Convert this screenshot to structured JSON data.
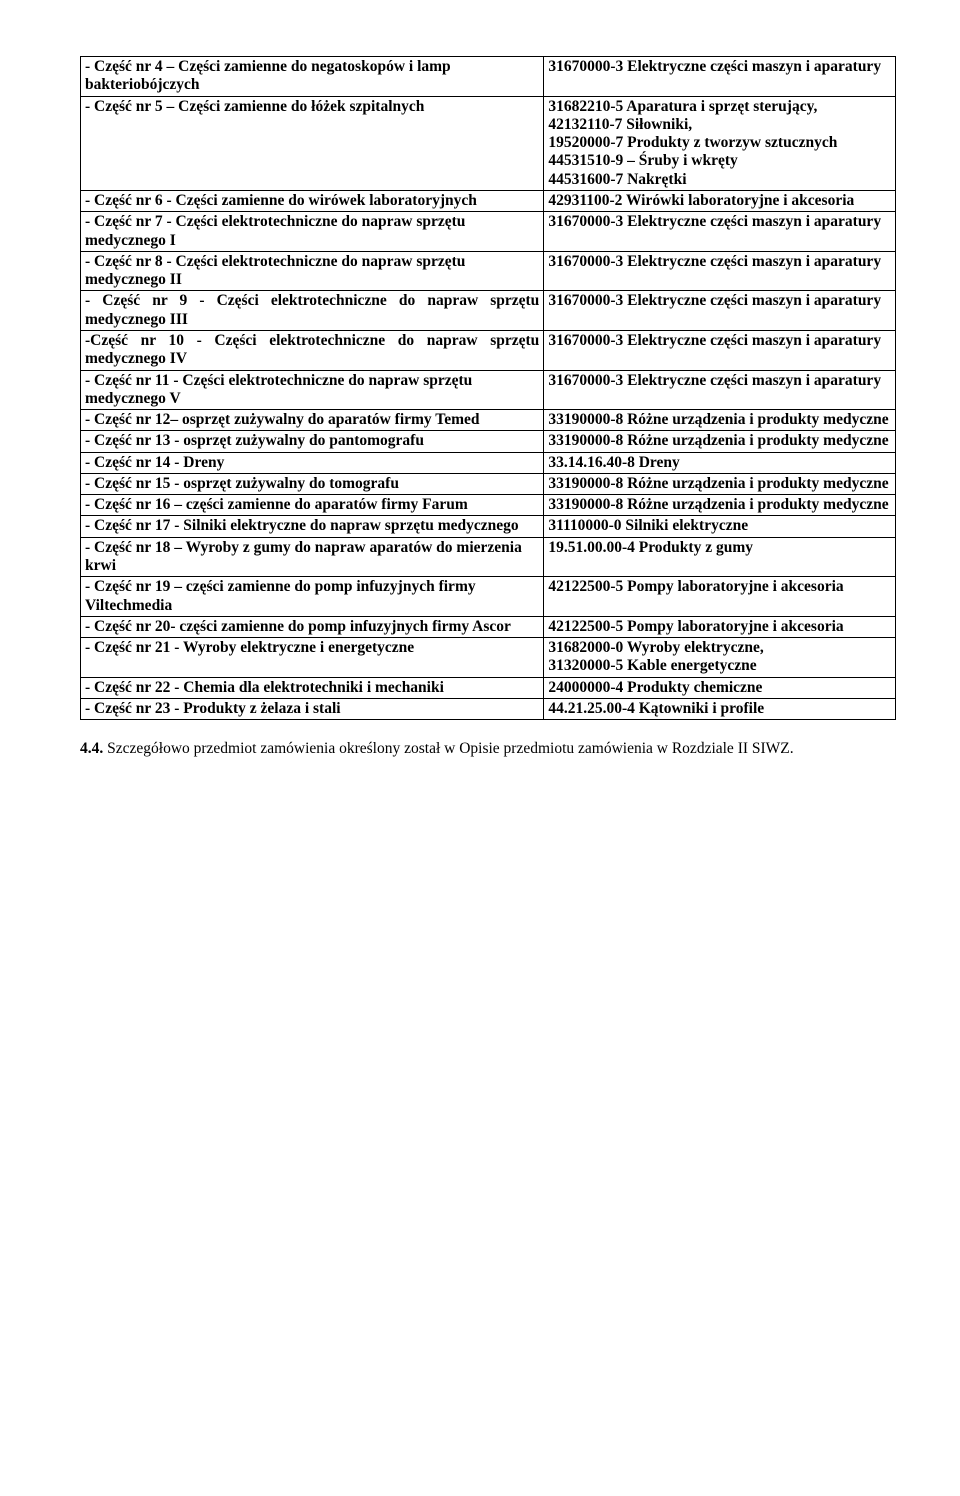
{
  "rows": [
    {
      "left": "- Część nr 4 – Części zamienne do negatoskopów i lamp bakteriobójczych",
      "right": "31670000-3 Elektryczne części maszyn i aparatury"
    },
    {
      "left": "- Część nr 5 – Części zamienne do łóżek szpitalnych",
      "right": "31682210-5 Aparatura i sprzęt sterujący,\n42132110-7 Siłowniki,\n19520000-7 Produkty z tworzyw sztucznych\n44531510-9 – Śruby i wkręty\n44531600-7 Nakrętki",
      "right_justify": true
    },
    {
      "left": "- Część nr 6 - Części zamienne do wirówek laboratoryjnych",
      "right": "42931100-2 Wirówki laboratoryjne i akcesoria"
    },
    {
      "left": "- Część nr 7 - Części elektrotechniczne do napraw sprzętu medycznego I",
      "right": "31670000-3 Elektryczne części maszyn i aparatury"
    },
    {
      "left": "- Część nr 8 - Części elektrotechniczne do napraw sprzętu medycznego II",
      "right": "31670000-3 Elektryczne części maszyn i aparatury"
    },
    {
      "left": "- Część nr 9 - Części elektrotechniczne do napraw sprzętu medycznego III",
      "left_justify": true,
      "right": "31670000-3 Elektryczne części maszyn i aparatury"
    },
    {
      "left": "-Część nr 10 - Części elektrotechniczne do napraw sprzętu medycznego IV",
      "left_justify": true,
      "right": "31670000-3 Elektryczne części maszyn i aparatury"
    },
    {
      "left": "- Część nr 11 - Części elektrotechniczne do napraw sprzętu medycznego V",
      "right": "31670000-3 Elektryczne części maszyn i aparatury"
    },
    {
      "left": "- Część nr 12– osprzęt zużywalny do aparatów firmy Temed",
      "left_justify": true,
      "right": "33190000-8 Różne urządzenia i produkty medyczne"
    },
    {
      "left": "- Część nr 13  - osprzęt zużywalny do pantomografu",
      "right": "33190000-8 Różne urządzenia i produkty medyczne"
    },
    {
      "left": "- Część nr 14 -  Dreny",
      "right": "33.14.16.40-8 Dreny"
    },
    {
      "left": "- Część nr 15 - osprzęt zużywalny do tomografu",
      "right": "33190000-8 Różne urządzenia i produkty medyczne"
    },
    {
      "left": "- Część nr 16 – części zamienne do aparatów firmy Farum",
      "right": "33190000-8 Różne urządzenia i produkty medyczne"
    },
    {
      "left": "- Część nr 17 - Silniki elektryczne do napraw sprzętu medycznego",
      "right": "31110000-0 Silniki elektryczne"
    },
    {
      "left": "- Część nr 18 – Wyroby z gumy do napraw aparatów do mierzenia krwi",
      "right": "19.51.00.00-4  Produkty z gumy"
    },
    {
      "left": "- Część nr 19 – części zamienne do pomp infuzyjnych firmy Viltechmedia",
      "right": "42122500-5  Pompy laboratoryjne i akcesoria"
    },
    {
      "left": "- Część nr 20- części zamienne do pomp infuzyjnych firmy Ascor",
      "right": "42122500-5  Pompy laboratoryjne i akcesoria"
    },
    {
      "left": "- Część nr 21 - Wyroby elektryczne i energetyczne",
      "right": "31682000-0 Wyroby elektryczne,\n31320000-5 Kable energetyczne"
    },
    {
      "left": "- Część nr 22 - Chemia dla elektrotechniki i mechaniki",
      "right": "24000000-4 Produkty chemiczne"
    },
    {
      "left": "- Część nr 23 - Produkty z żelaza i stali",
      "right": "44.21.25.00-4 Kątowniki i profile"
    }
  ],
  "footer": {
    "lead_bold": "4.4.",
    "text": " Szczegółowo przedmiot zamówienia określony został w Opisie przedmiotu zamówienia w Rozdziale II SIWZ."
  }
}
